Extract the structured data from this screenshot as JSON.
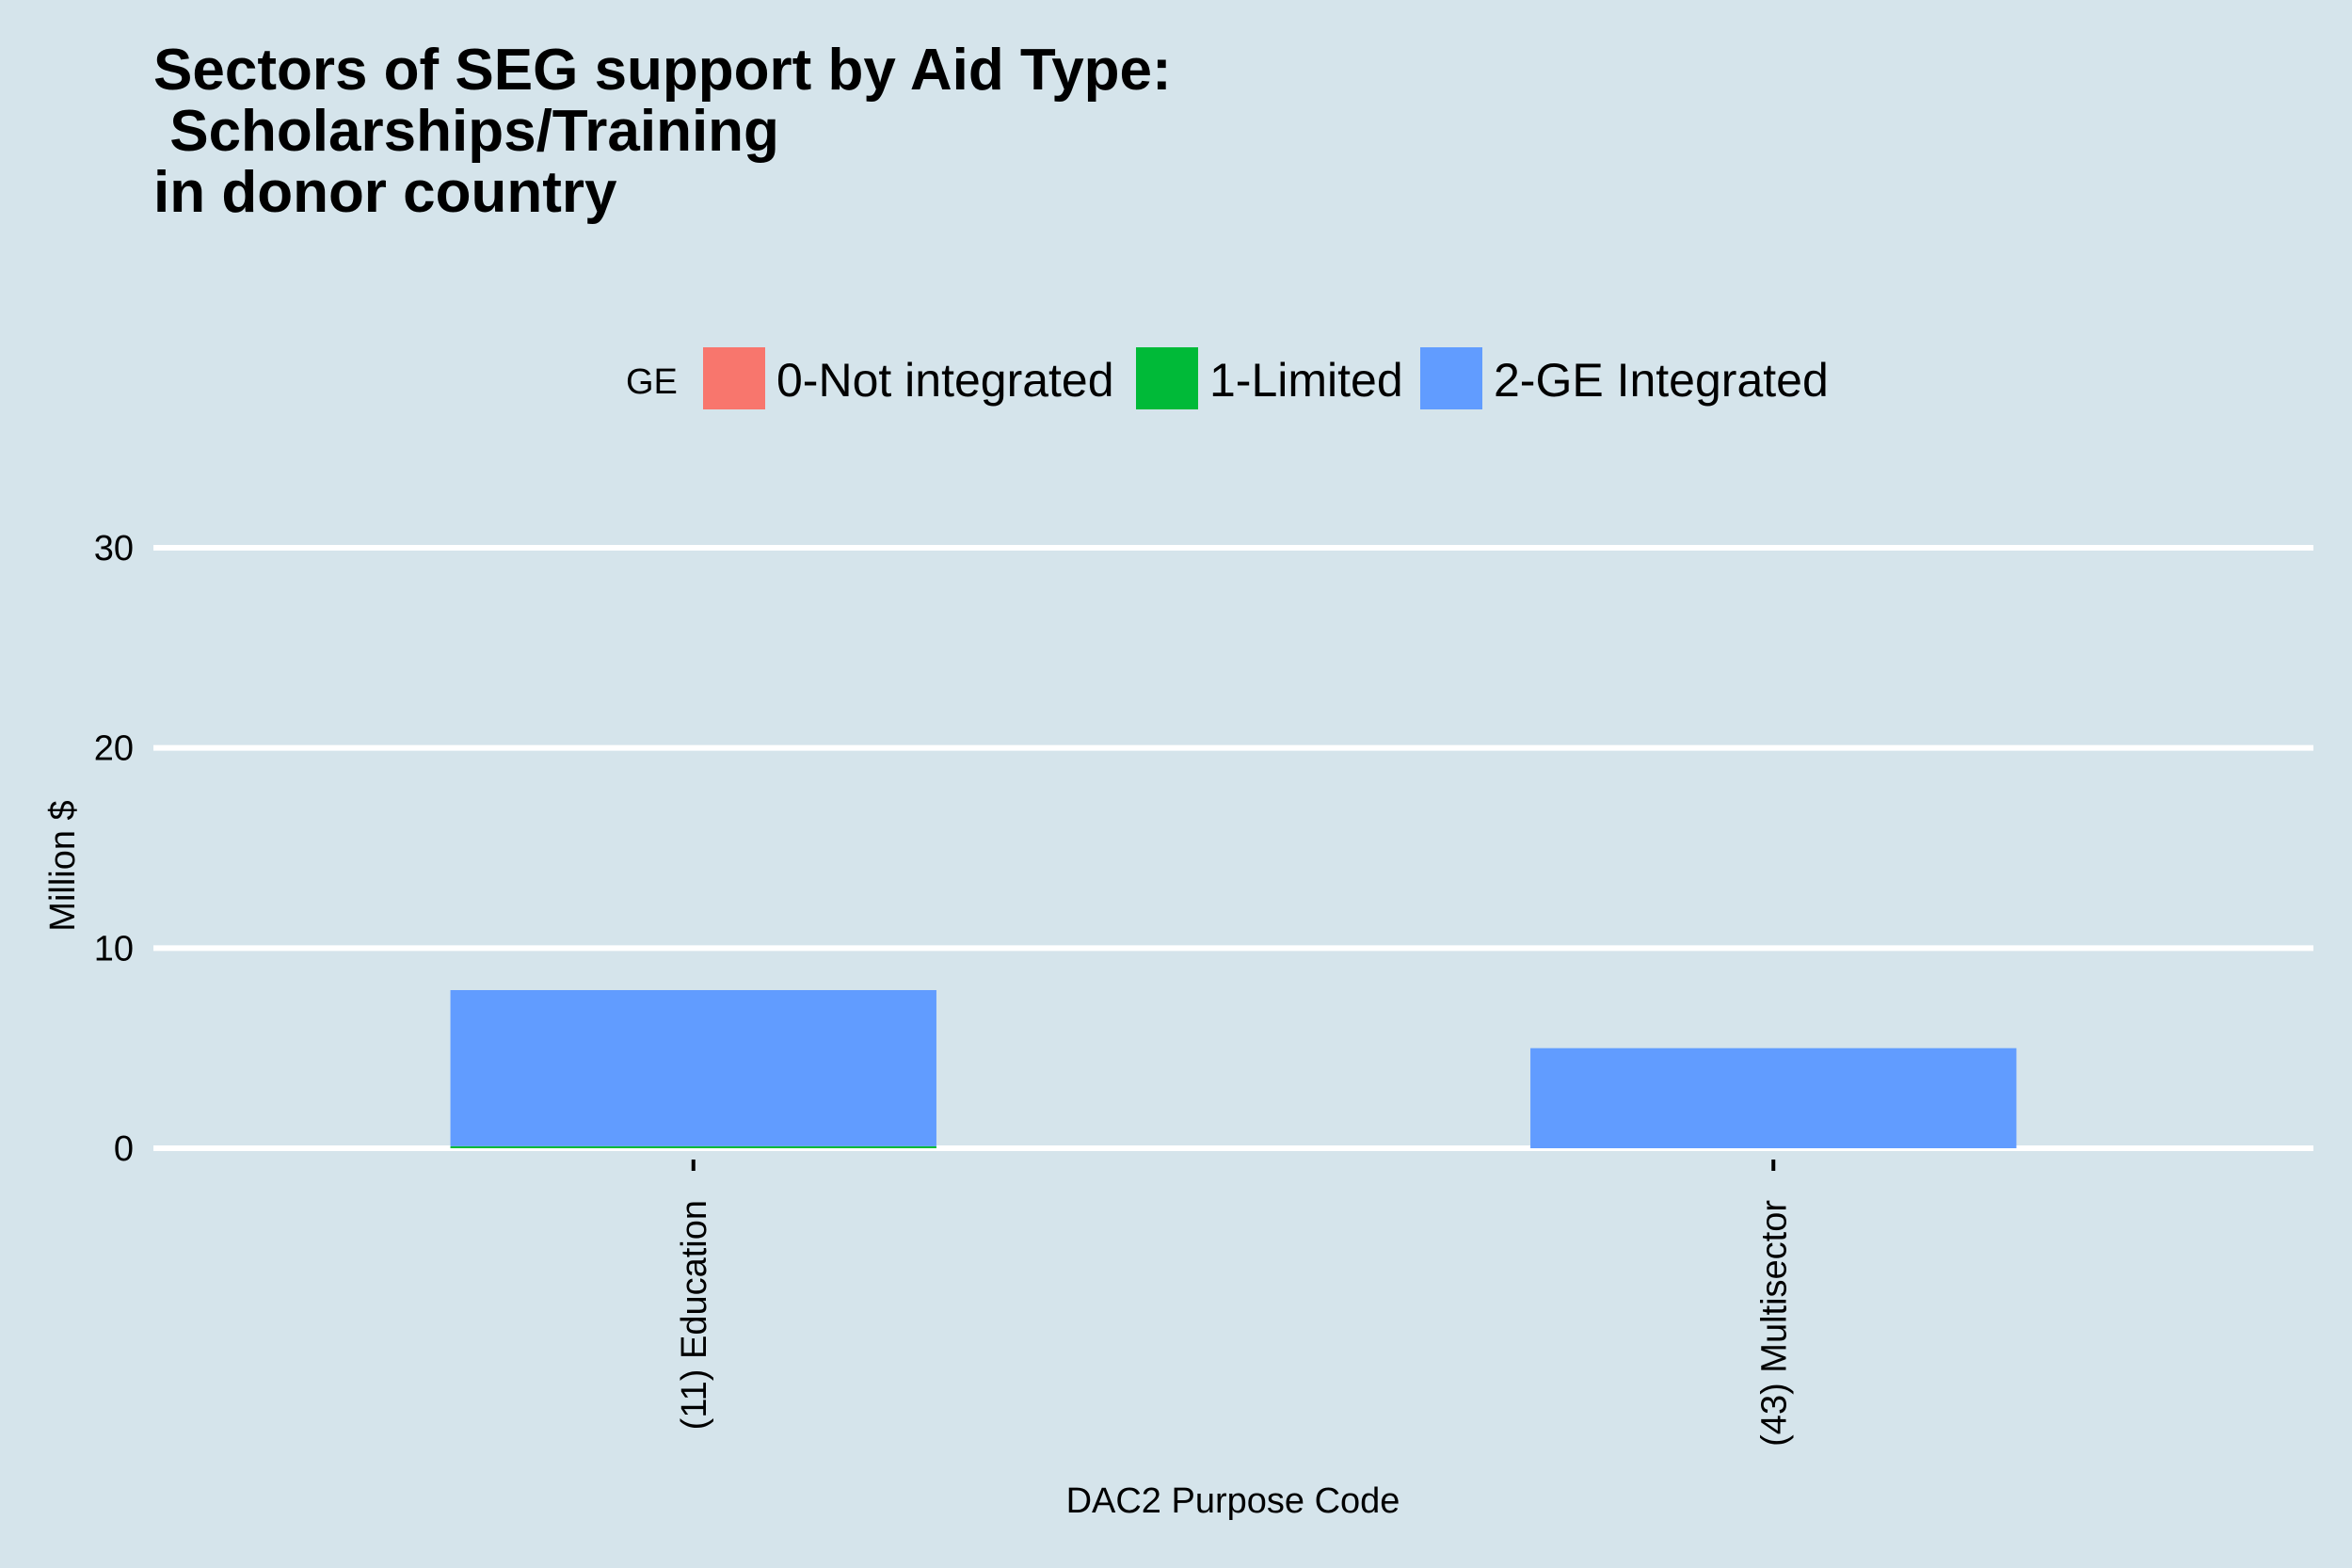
{
  "chart_data": {
    "type": "bar",
    "stacked": true,
    "title": [
      "Sectors of SEG support by Aid Type:",
      " Scholarships/Training",
      "in donor country"
    ],
    "xlabel": "DAC2 Purpose Code",
    "ylabel": "Million $",
    "ylim": [
      0,
      30
    ],
    "yticks": [
      0,
      10,
      20,
      30
    ],
    "grid": "horizontal",
    "legend_position": "top",
    "legend_title": "GE",
    "categories": [
      "(11) Education",
      "(43) Multisector"
    ],
    "series": [
      {
        "name": "0-Not integrated",
        "color": "#f8766d",
        "values": [
          0,
          0
        ]
      },
      {
        "name": "1-Limited",
        "color": "#00ba38",
        "values": [
          0.1,
          0
        ]
      },
      {
        "name": "2-GE Integrated",
        "color": "#619cff",
        "values": [
          7.8,
          5.0
        ]
      }
    ],
    "colors": {
      "background": "#d5e4eb",
      "gridline": "#ffffff",
      "text": "#000000"
    }
  }
}
